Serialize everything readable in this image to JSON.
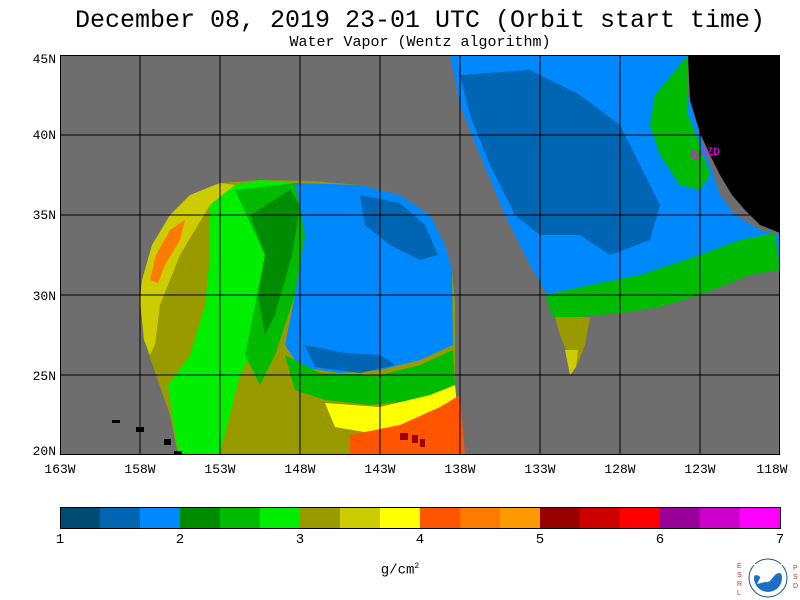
{
  "header": {
    "title": "December 08, 2019  23-01 UTC  (Orbit start time)",
    "subtitle": "Water Vapor (Wentz algorithm)"
  },
  "map": {
    "lat_labels": [
      "45N",
      "40N",
      "35N",
      "30N",
      "25N",
      "20N"
    ],
    "lon_labels": [
      "163W",
      "158W",
      "153W",
      "148W",
      "143W",
      "138W",
      "133W",
      "128W",
      "123W",
      "118W"
    ],
    "station_label": "CZD",
    "colors": {
      "no_data": "#6e6e6e",
      "land": "#000000",
      "grid": "#000000",
      "station": "#ff00ff"
    }
  },
  "colorbar": {
    "min": 1,
    "max": 7,
    "tick_labels": [
      "1",
      "2",
      "3",
      "4",
      "5",
      "6",
      "7"
    ],
    "units": "g/cm",
    "units_exp": "2",
    "colors": [
      "#004a73",
      "#0066b3",
      "#0088ff",
      "#008c00",
      "#00bb00",
      "#00ee00",
      "#999900",
      "#cccc00",
      "#ffff00",
      "#ff5500",
      "#ff7a00",
      "#ff9900",
      "#990000",
      "#cc0000",
      "#ff0000",
      "#990099",
      "#cc00cc",
      "#ff00ff"
    ]
  },
  "logo": {
    "org_left": "ESRL",
    "org_right": "PSD",
    "center": "NOAA"
  }
}
